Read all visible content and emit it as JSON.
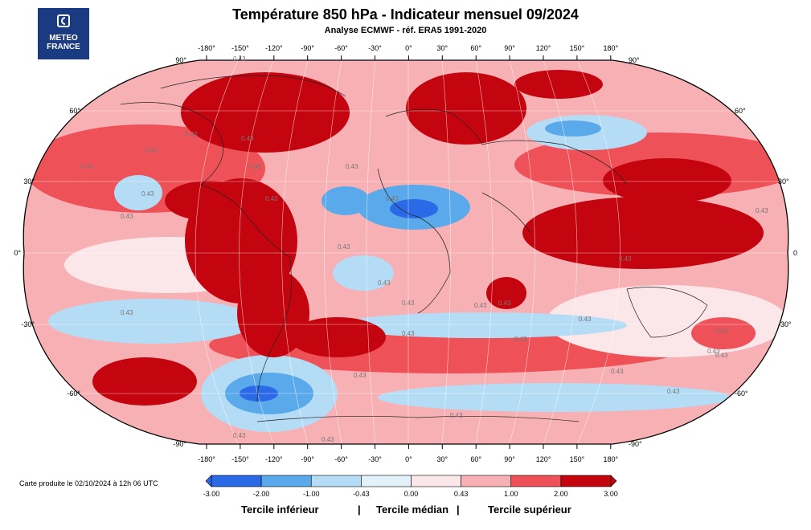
{
  "title": "Température 850 hPa - Indicateur mensuel 09/2024",
  "subtitle": "Analyse ECMWF - réf. ERA5 1991-2020",
  "logo": {
    "line1": "METEO",
    "line2": "FRANCE",
    "icon": "meteo-france-logo-icon"
  },
  "credit": "Carte produite le 02/10/2024 à 12h 06 UTC",
  "map": {
    "projection": "Robinson",
    "lon_ticks": [
      "-180°",
      "-150°",
      "-120°",
      "-90°",
      "-60°",
      "-30°",
      "0°",
      "30°",
      "60°",
      "90°",
      "120°",
      "150°",
      "180°"
    ],
    "lat_ticks_left": [
      "90°",
      "60°",
      "30°",
      "0°",
      "-30°",
      "-60°",
      "-90°"
    ],
    "lat_ticks_right": [
      "90°",
      "60°",
      "30°",
      "0",
      "-30°",
      "-60°",
      "-90°"
    ],
    "contour_label": "0.43"
  },
  "colorbar": {
    "ticks": [
      "-3.00",
      "-2.00",
      "-1.00",
      "-0.43",
      "0.00",
      "0.43",
      "1.00",
      "2.00",
      "3.00"
    ],
    "colors": [
      "#2a6ae6",
      "#5aa9ea",
      "#b5dcf5",
      "#e3f1fa",
      "#fbe7ea",
      "#f7b0b4",
      "#ee5157",
      "#c4050f"
    ],
    "tercile_low": "Tercile inférieur",
    "tercile_mid": "Tercile médian",
    "tercile_high": "Tercile supérieur",
    "separator": "|"
  }
}
